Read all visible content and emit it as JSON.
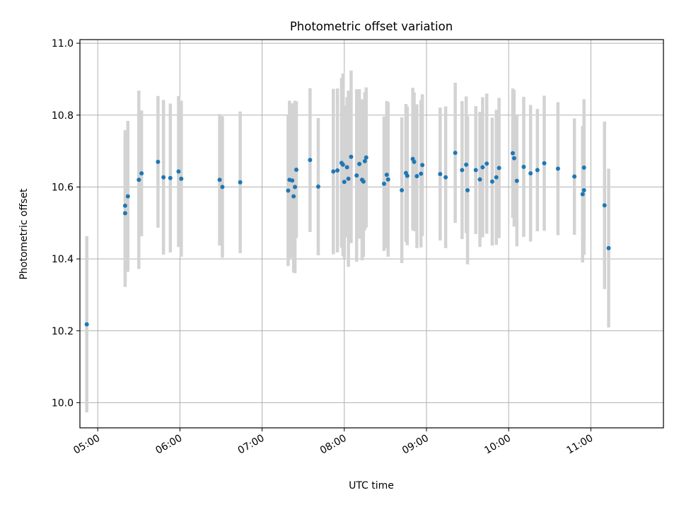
{
  "chart_data": {
    "type": "scatter",
    "title": "Photometric offset variation",
    "xlabel": "UTC time",
    "ylabel": "Photometric offset",
    "xlim": [
      "04:47",
      "11:53"
    ],
    "ylim": [
      9.93,
      11.01
    ],
    "xticks": [
      "05:00",
      "06:00",
      "07:00",
      "08:00",
      "09:00",
      "10:00",
      "11:00"
    ],
    "yticks": [
      10.0,
      10.2,
      10.4,
      10.6,
      10.8,
      11.0
    ],
    "ytick_labels": [
      "10.0",
      "10.2",
      "10.4",
      "10.6",
      "10.8",
      "11.0"
    ],
    "grid": true,
    "colors": {
      "point": "#1f77b4",
      "errorbar": "#d3d3d3",
      "grid": "#b0b0b0"
    },
    "series": [
      {
        "x": [
          "04:52",
          "05:20",
          "05:20",
          "05:22",
          "05:30",
          "05:32",
          "05:44",
          "05:48",
          "05:53",
          "05:59",
          "06:01",
          "06:29",
          "06:31",
          "06:44",
          "07:19",
          "07:20",
          "07:22",
          "07:23",
          "07:24",
          "07:25",
          "07:35",
          "07:41",
          "07:52",
          "07:55",
          "07:58",
          "07:59",
          "08:00",
          "08:02",
          "08:03",
          "08:05",
          "08:09",
          "08:11",
          "08:13",
          "08:14",
          "08:15",
          "08:16",
          "08:29",
          "08:31",
          "08:32",
          "08:42",
          "08:45",
          "08:46",
          "08:50",
          "08:51",
          "08:53",
          "08:56",
          "08:57",
          "09:10",
          "09:14",
          "09:21",
          "09:26",
          "09:29",
          "09:30",
          "09:36",
          "09:39",
          "09:41",
          "09:44",
          "09:48",
          "09:51",
          "09:53",
          "10:03",
          "10:04",
          "10:06",
          "10:11",
          "10:16",
          "10:21",
          "10:26",
          "10:36",
          "10:48",
          "10:54",
          "10:55",
          "10:55",
          "11:10",
          "11:13"
        ],
        "y": [
          10.218,
          10.527,
          10.548,
          10.574,
          10.62,
          10.638,
          10.67,
          10.627,
          10.625,
          10.643,
          10.623,
          10.62,
          10.6,
          10.613,
          10.59,
          10.62,
          10.618,
          10.574,
          10.6,
          10.648,
          10.675,
          10.601,
          10.643,
          10.646,
          10.667,
          10.662,
          10.614,
          10.655,
          10.623,
          10.684,
          10.632,
          10.664,
          10.62,
          10.615,
          10.672,
          10.682,
          10.609,
          10.634,
          10.621,
          10.591,
          10.639,
          10.631,
          10.678,
          10.67,
          10.63,
          10.637,
          10.661,
          10.636,
          10.627,
          10.695,
          10.647,
          10.662,
          10.591,
          10.647,
          10.621,
          10.655,
          10.665,
          10.615,
          10.627,
          10.653,
          10.694,
          10.68,
          10.617,
          10.656,
          10.638,
          10.647,
          10.666,
          10.651,
          10.629,
          10.58,
          10.591,
          10.654,
          10.549,
          10.43
        ],
        "yerr": [
          0.245,
          0.205,
          0.21,
          0.21,
          0.248,
          0.175,
          0.183,
          0.215,
          0.207,
          0.21,
          0.217,
          0.183,
          0.197,
          0.197,
          0.21,
          0.22,
          0.215,
          0.212,
          0.24,
          0.19,
          0.2,
          0.191,
          0.23,
          0.228,
          0.236,
          0.254,
          0.212,
          0.195,
          0.245,
          0.24,
          0.24,
          0.208,
          0.224,
          0.21,
          0.192,
          0.195,
          0.187,
          0.205,
          0.215,
          0.203,
          0.192,
          0.193,
          0.198,
          0.193,
          0.2,
          0.205,
          0.197,
          0.185,
          0.197,
          0.195,
          0.192,
          0.19,
          0.206,
          0.178,
          0.188,
          0.195,
          0.195,
          0.178,
          0.188,
          0.195,
          0.18,
          0.19,
          0.182,
          0.195,
          0.19,
          0.17,
          0.188,
          0.185,
          0.162,
          0.19,
          0.18,
          0.19,
          0.233,
          0.221
        ]
      }
    ]
  }
}
